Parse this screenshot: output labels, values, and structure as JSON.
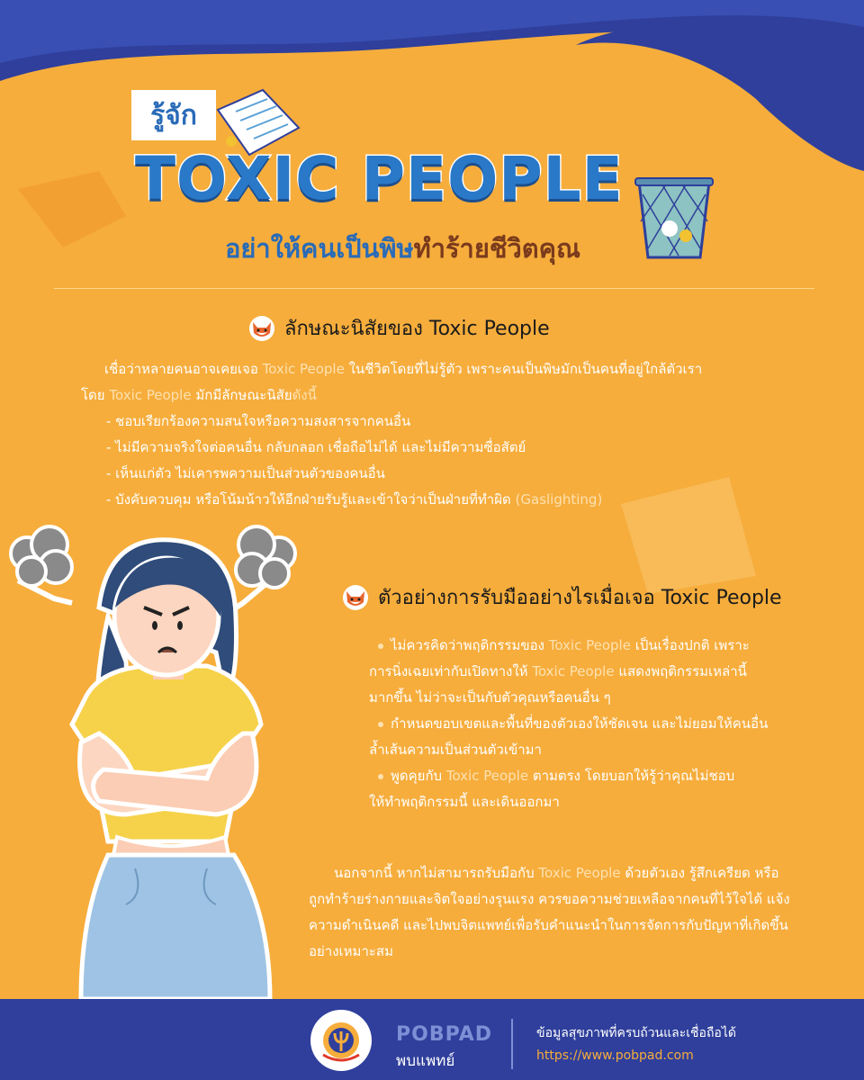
{
  "header": {
    "pre_title": "รู้จัก",
    "title": "TOXIC PEOPLE",
    "subtitle_part1": "อย่าให้คนเป็นพิษ",
    "subtitle_part2": "ทำร้ายชีวิตคุณ"
  },
  "section1": {
    "heading": "ลักษณะนิสัยของ Toxic People",
    "intro_1a": "เชื่อว่าหลายคนอาจเคยเจอ ",
    "intro_1b": "Toxic People",
    "intro_1c": " ในชีวิตโดยที่ไม่รู้ตัว เพราะคนเป็นพิษมักเป็นคนที่อยู่ใกล้ตัวเรา",
    "intro_2a": "โดย ",
    "intro_2b": "Toxic People",
    "intro_2c": " มักมีลักษณะนิสัย",
    "intro_2d": "ดังนี้",
    "items": [
      "- ชอบเรียกร้องความสนใจหรือความสงสารจากคนอื่น",
      "- ไม่มีความจริงใจต่อคนอื่น กลับกลอก เชื่อถือไม่ได้ และไม่มีความซื่อสัตย์",
      "- เห็นแก่ตัว ไม่เคารพความเป็นส่วนตัวของคนอื่น",
      "- บังคับควบคุม หรือโน้มน้าวให้อีกฝ่ายรับรู้และเข้าใจว่าเป็นฝ่ายที่ทำผิด "
    ],
    "item4_hl": "(Gaslighting)"
  },
  "section2": {
    "heading": "ตัวอย่างการรับมืออย่างไรเมื่อเจอ Toxic People",
    "b1_l1a": "ไม่ควรคิดว่าพฤติกรรมของ ",
    "b1_l1b": "Toxic People",
    "b1_l1c": " เป็นเรื่องปกติ เพราะ",
    "b1_l2a": "การนิ่งเฉยเท่ากับเปิดทางให้ ",
    "b1_l2b": "Toxic People",
    "b1_l2c": " แสดงพฤติกรรมเหล่านี้",
    "b1_l3": "มากขึ้น ไม่ว่าจะเป็นกับตัวคุณหรือคนอื่น ๆ",
    "b2_l1": "กำหนดขอบเขตและพื้นที่ของตัวเองให้ชัดเจน และไม่ยอมให้คนอื่น",
    "b2_l2": "ล้ำเส้นความเป็นส่วนตัวเข้ามา",
    "b3_l1a": "พูดคุยกับ ",
    "b3_l1b": "Toxic People",
    "b3_l1c": " ตามตรง โดยบอกให้รู้ว่าคุณไม่ชอบ",
    "b3_l2": "ให้ทำพฤติกรรมนี้ และเดินออกมา"
  },
  "section3": {
    "l1a": "นอกจากนี้ หากไม่สามารถรับมือกับ ",
    "l1b": "Toxic People",
    "l1c": " ด้วยตัวเอง รู้สึกเครียด หรือ",
    "l2": "ถูกทำร้ายร่างกายและจิตใจอย่างรุนแรง ควรขอความช่วยเหลือจากคนที่ไว้ใจได้ แจ้ง",
    "l3": "ความดำเนินคดี และไปพบจิตแพทย์เพื่อรับคำแนะนำในการจัดการกับปัญหาที่เกิดขึ้น",
    "l4": "อย่างเหมาะสม"
  },
  "footer": {
    "brand": "POBPAD",
    "brand_thai": "พบแพทย์",
    "tagline": "ข้อมูลสุขภาพที่ครบถ้วนและเชื่อถือได้",
    "url": "https://www.pobpad.com"
  },
  "colors": {
    "background": "#f6ad3c",
    "navy": "#2f3f9b",
    "title_blue": "#2a79c9",
    "highlight": "#fde1b0"
  }
}
